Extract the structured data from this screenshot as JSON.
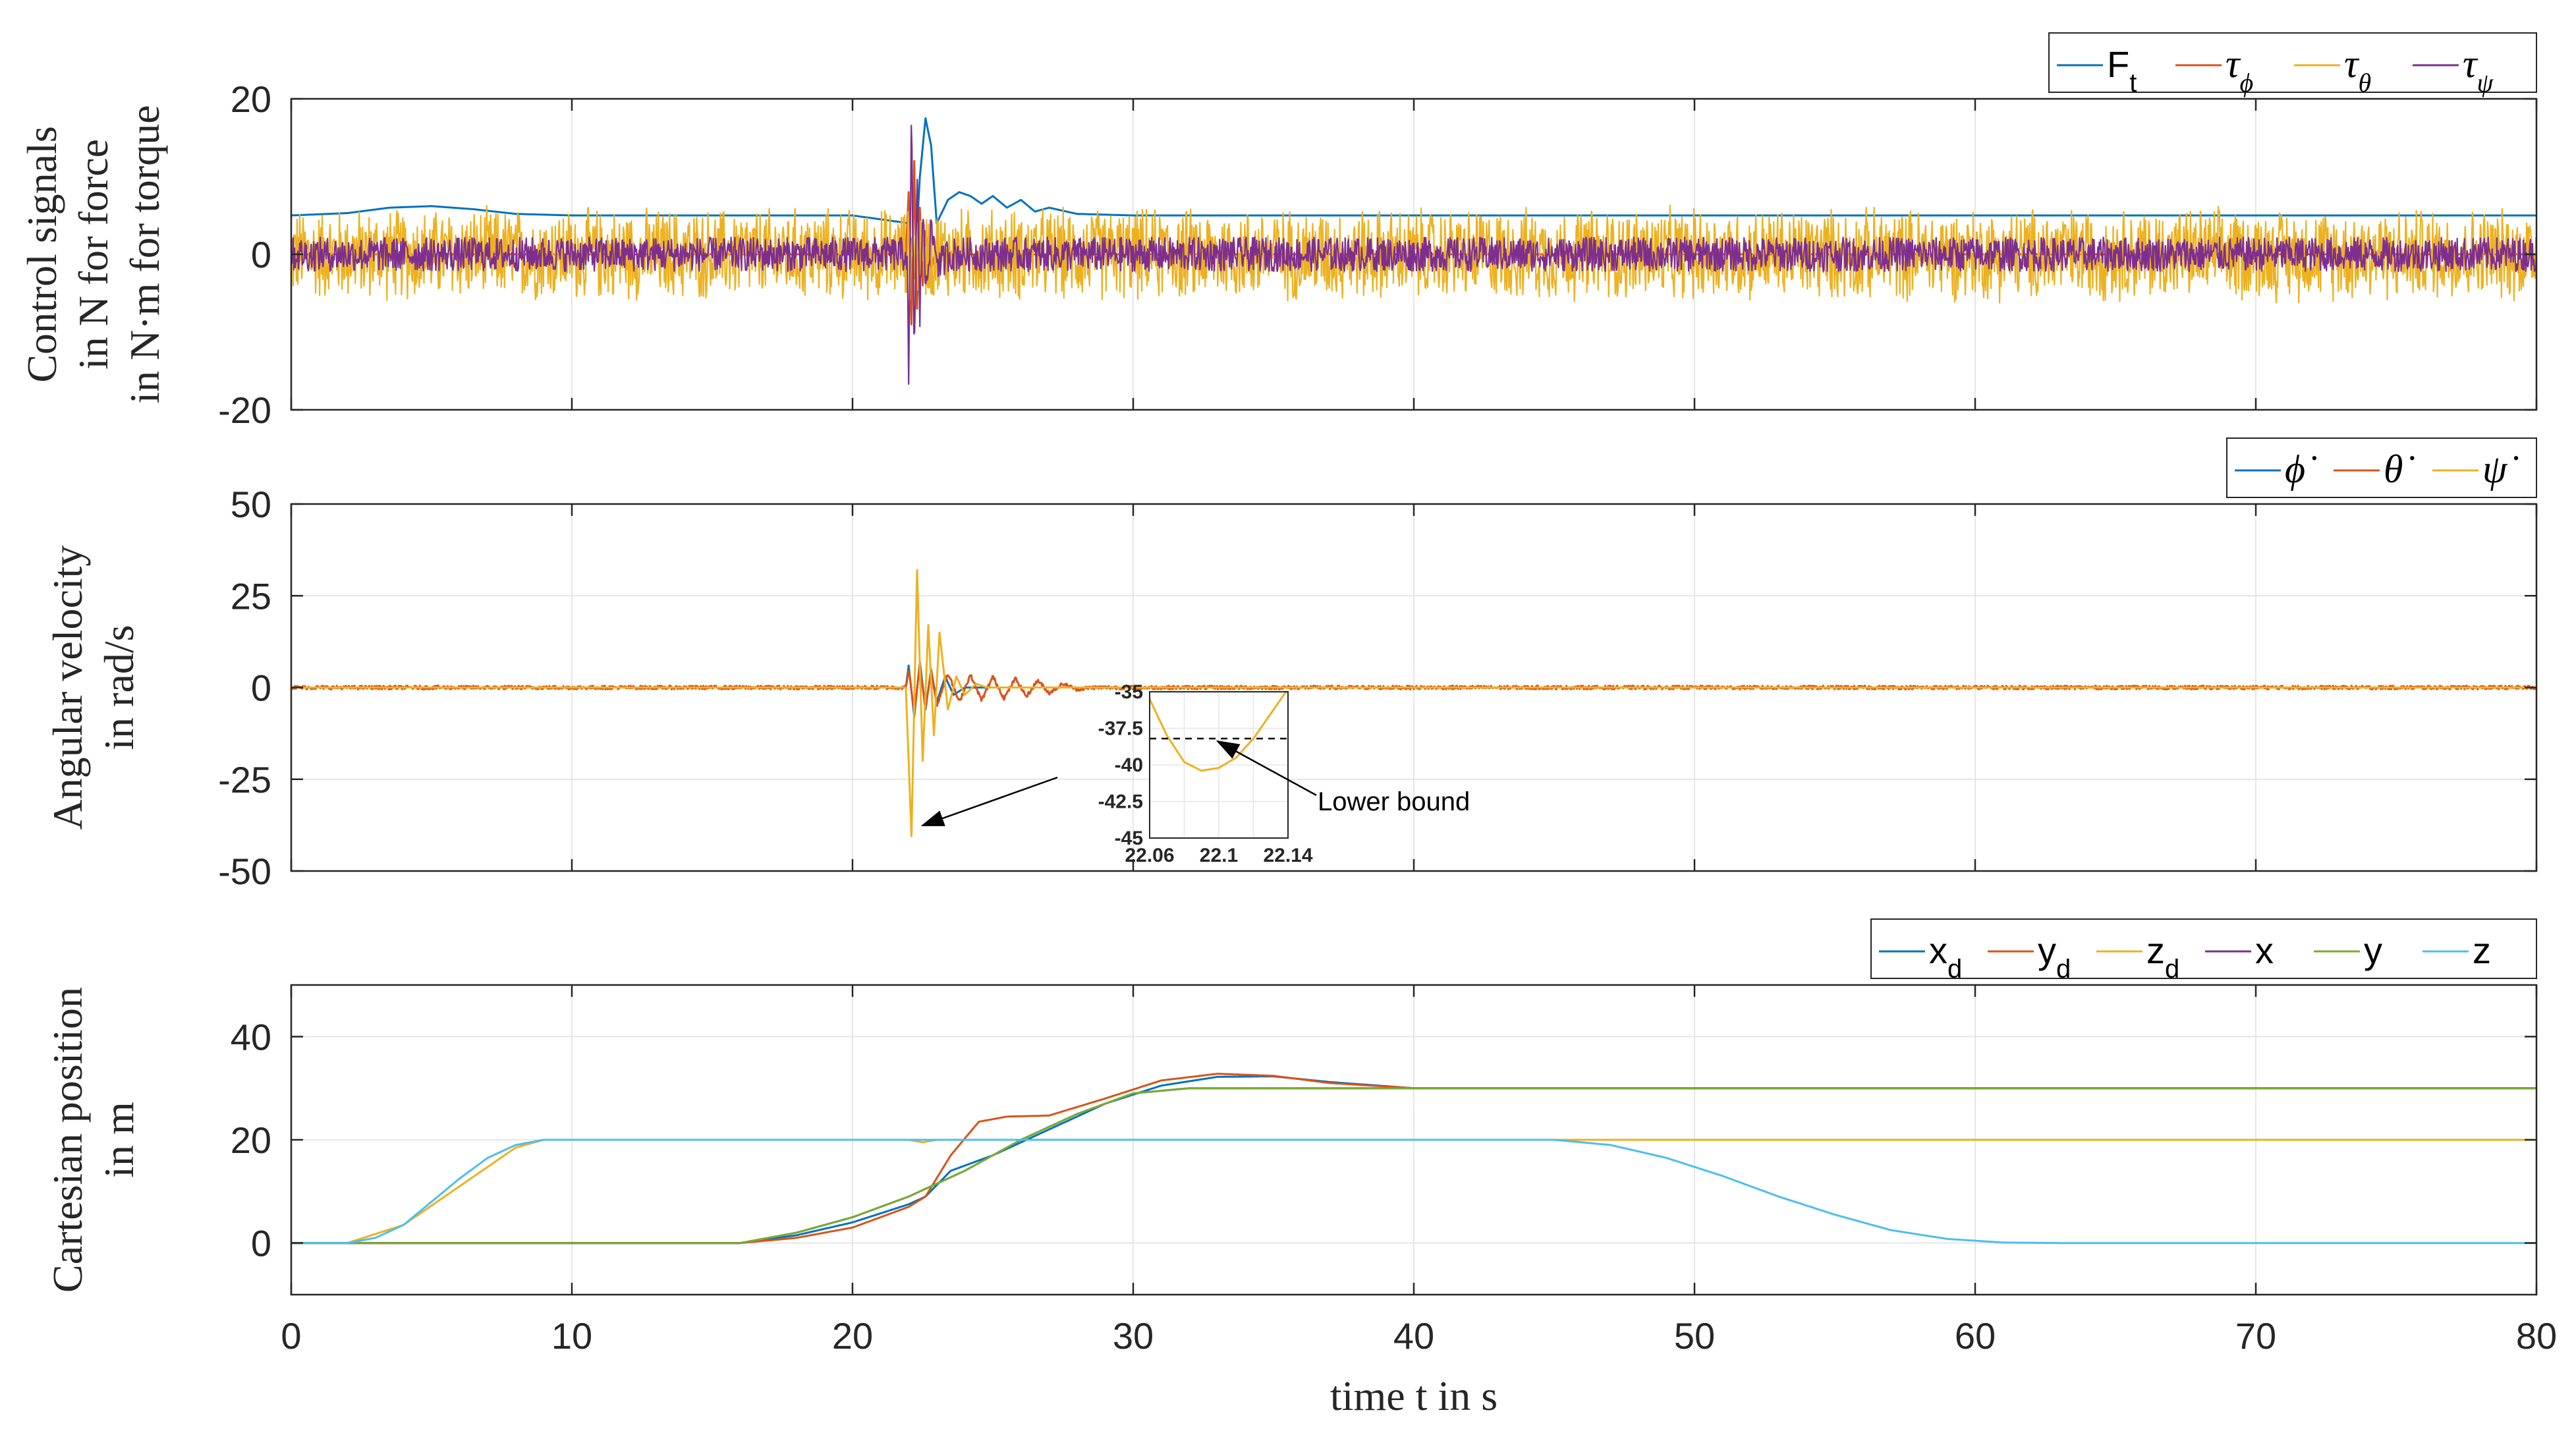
{
  "colors": {
    "c1": "#0072BD",
    "c2": "#D95319",
    "c3": "#EDB120",
    "c4": "#7E2F8E",
    "c5": "#77AC30",
    "c6": "#4DBEEE",
    "grid": "#e6e6e6",
    "axis": "#262626"
  },
  "chart_data": [
    {
      "type": "line",
      "panel": "control",
      "ylabel_lines": [
        "Control signals",
        "in N for force",
        "in N·m for torque"
      ],
      "ylim": [
        -20,
        20
      ],
      "yticks": [
        -20,
        0,
        20
      ],
      "xlim": [
        0,
        80
      ],
      "grid": true,
      "legend_position": "top-right",
      "legend": [
        {
          "name": "F",
          "sub": "t",
          "italic": false,
          "color": "c1"
        },
        {
          "name": "τ",
          "sub": "ϕ",
          "italic": true,
          "color": "c2"
        },
        {
          "name": "τ",
          "sub": "θ",
          "italic": true,
          "color": "c3"
        },
        {
          "name": "τ",
          "sub": "ψ",
          "italic": true,
          "color": "c4"
        }
      ],
      "series": [
        {
          "name": "F_t",
          "color": "c1",
          "x": [
            0,
            2,
            3.5,
            5,
            6.5,
            8,
            10,
            20,
            22.0,
            22.2,
            22.4,
            22.6,
            22.8,
            23.0,
            23.4,
            23.8,
            24.2,
            24.6,
            25,
            25.5,
            26,
            26.5,
            27,
            28,
            30,
            40,
            60,
            80
          ],
          "y": [
            5,
            5.3,
            6,
            6.2,
            5.8,
            5.2,
            5,
            5,
            4,
            -3,
            10,
            17.5,
            14,
            4,
            7,
            8,
            7.5,
            6.5,
            7.5,
            6,
            7,
            5.5,
            6,
            5.2,
            5,
            5,
            5,
            5
          ]
        },
        {
          "name": "tau_phi",
          "color": "c2",
          "x": [
            0,
            21.9,
            22.0,
            22.1,
            22.2,
            22.3,
            22.4,
            22.5,
            22.6,
            22.8,
            23.0,
            23.3,
            80
          ],
          "y": [
            0,
            0,
            8,
            -9,
            12,
            -7,
            6,
            -4,
            3,
            -2,
            1,
            0,
            0
          ]
        },
        {
          "name": "tau_theta",
          "noise_amplitude": 6.5,
          "color": "c3",
          "x": [
            0,
            80
          ],
          "y": [
            0,
            0
          ]
        },
        {
          "name": "tau_psi",
          "noise_amplitude": 2.2,
          "color": "c4",
          "x": [
            0,
            21.95,
            22.0,
            22.1,
            22.2,
            22.3,
            22.4,
            22.5,
            22.6,
            22.8,
            23.1,
            23.4,
            80
          ],
          "y": [
            0,
            0,
            -17.5,
            17,
            -13,
            10,
            -8,
            6,
            -4,
            3,
            -1.5,
            0,
            0
          ]
        }
      ]
    },
    {
      "type": "line",
      "panel": "angular",
      "ylabel_lines": [
        "Angular velocity",
        "in rad/s"
      ],
      "ylim": [
        -50,
        50
      ],
      "yticks": [
        -50,
        -25,
        0,
        25,
        50
      ],
      "xlim": [
        0,
        80
      ],
      "grid": true,
      "legend_position": "top-right",
      "legend": [
        {
          "name": "ϕ̇",
          "sub": "",
          "italic": true,
          "color": "c1"
        },
        {
          "name": "θ̇",
          "sub": "",
          "italic": true,
          "color": "c2"
        },
        {
          "name": "ψ̇",
          "sub": "",
          "italic": true,
          "color": "c3"
        }
      ],
      "series": [
        {
          "name": "phi_dot",
          "color": "c1",
          "x": [
            0,
            21.9,
            22.0,
            22.2,
            22.4,
            22.6,
            22.8,
            23.0,
            23.3,
            23.6,
            24,
            80
          ],
          "y": [
            0,
            0,
            6,
            -8,
            7,
            -6,
            5,
            -4,
            3,
            -2,
            0,
            0
          ]
        },
        {
          "name": "theta_dot",
          "color": "c2",
          "noise_amplitude": 0.5,
          "x": [
            0,
            21.9,
            22.0,
            22.2,
            22.4,
            22.6,
            22.8,
            23.0,
            23.4,
            23.8,
            24.2,
            24.6,
            25.0,
            25.4,
            25.8,
            26.2,
            26.6,
            27.0,
            27.5,
            28,
            28.5,
            80
          ],
          "y": [
            0,
            0,
            5,
            -7,
            6,
            -6,
            5,
            -5,
            4,
            -4,
            3.5,
            -3.5,
            3,
            -3,
            2.5,
            -2.5,
            2,
            -1.5,
            1,
            -0.5,
            0,
            0
          ]
        },
        {
          "name": "psi_dot",
          "color": "c3",
          "x": [
            0,
            21.9,
            22.0,
            22.1,
            22.3,
            22.5,
            22.7,
            22.9,
            23.1,
            23.4,
            23.7,
            24,
            24.4,
            24.8,
            80
          ],
          "y": [
            0,
            0,
            -20,
            -40.5,
            32,
            -20,
            17,
            -13,
            15,
            -6,
            3,
            -2,
            1,
            0,
            0
          ]
        }
      ],
      "inset": {
        "xlim": [
          22.06,
          22.14
        ],
        "ylim": [
          -45,
          -35
        ],
        "xticks": [
          "22.06",
          "22.1",
          "22.14"
        ],
        "yticks": [
          "-35",
          "-37.5",
          "-40",
          "-42.5",
          "-45"
        ],
        "lower_bound": -38.2,
        "curve_x": [
          22.06,
          22.07,
          22.08,
          22.09,
          22.1,
          22.11,
          22.12,
          22.13,
          22.14
        ],
        "curve_y": [
          -35.5,
          -38,
          -39.8,
          -40.4,
          -40.2,
          -39.5,
          -38.2,
          -36.5,
          -34.8
        ],
        "annotation": "Lower bound"
      }
    },
    {
      "type": "line",
      "panel": "position",
      "ylabel_lines": [
        "Cartesian position",
        "in m"
      ],
      "ylim": [
        -10,
        50
      ],
      "yticks": [
        0,
        20,
        40
      ],
      "xlim": [
        0,
        80
      ],
      "xticks": [
        0,
        10,
        20,
        30,
        40,
        50,
        60,
        70,
        80
      ],
      "xlabel": "time t in s",
      "grid": true,
      "legend_position": "top-right",
      "legend": [
        {
          "name": "x",
          "sub": "d",
          "italic": false,
          "color": "c1"
        },
        {
          "name": "y",
          "sub": "d",
          "italic": false,
          "color": "c2"
        },
        {
          "name": "z",
          "sub": "d",
          "italic": false,
          "color": "c3"
        },
        {
          "name": "x",
          "sub": "",
          "italic": false,
          "color": "c4"
        },
        {
          "name": "y",
          "sub": "",
          "italic": false,
          "color": "c5"
        },
        {
          "name": "z",
          "sub": "",
          "italic": false,
          "color": "c6"
        }
      ],
      "series": [
        {
          "name": "x_d",
          "color": "c1",
          "x": [
            0,
            16,
            18,
            20,
            22,
            22.6,
            23.5,
            25,
            27,
            29,
            31,
            33,
            35,
            37,
            40,
            45,
            80
          ],
          "y": [
            0,
            0,
            1.5,
            4,
            7.5,
            9,
            14,
            17,
            22,
            27,
            30.5,
            32.2,
            32.3,
            31.2,
            30,
            30,
            30
          ]
        },
        {
          "name": "y_d",
          "color": "c2",
          "x": [
            0,
            16,
            18,
            20,
            22,
            22.6,
            23.5,
            24.5,
            25.5,
            27,
            29,
            31,
            33,
            35,
            37,
            40,
            45,
            80
          ],
          "y": [
            0,
            0,
            1,
            3,
            7,
            9,
            17,
            23.5,
            24.5,
            24.7,
            28,
            31.5,
            32.8,
            32.4,
            31,
            30,
            30,
            30
          ]
        },
        {
          "name": "z_d",
          "color": "c3",
          "x": [
            0,
            2,
            4,
            6,
            8,
            9,
            10,
            22,
            22.5,
            23,
            24,
            80
          ],
          "y": [
            0,
            0,
            3.5,
            11,
            18.5,
            20,
            20,
            20,
            19.5,
            20,
            20,
            20
          ]
        },
        {
          "name": "x",
          "color": "c4",
          "x": [
            0,
            16,
            18,
            20,
            22,
            24,
            26,
            28,
            30,
            32,
            34,
            80
          ],
          "y": [
            0,
            0,
            2,
            5,
            9,
            14,
            20,
            25,
            29,
            30,
            30,
            30
          ]
        },
        {
          "name": "y",
          "color": "c5",
          "x": [
            0,
            16,
            18,
            20,
            22,
            24,
            26,
            28,
            30,
            32,
            34,
            80
          ],
          "y": [
            0,
            0,
            2,
            5,
            9,
            14,
            20,
            25,
            29,
            30,
            30,
            30
          ]
        },
        {
          "name": "z",
          "color": "c6",
          "x": [
            0,
            2,
            3,
            4,
            5,
            6,
            7,
            8,
            9,
            10,
            45,
            47,
            49,
            51,
            53,
            55,
            57,
            59,
            61,
            63,
            80
          ],
          "y": [
            0,
            0,
            1,
            3.5,
            8,
            12.5,
            16.5,
            19,
            20,
            20,
            20,
            19,
            16.5,
            13,
            9,
            5.5,
            2.5,
            0.8,
            0.1,
            0,
            0
          ]
        }
      ]
    }
  ]
}
